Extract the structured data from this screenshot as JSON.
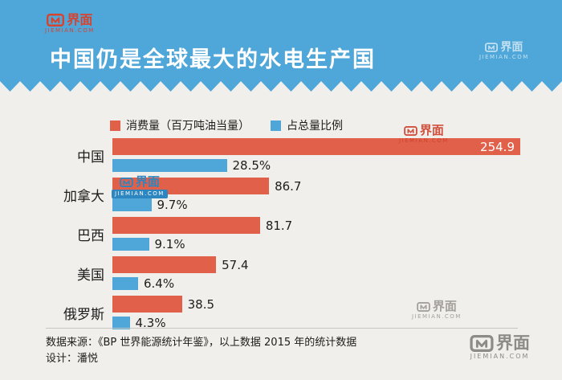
{
  "brand": {
    "name": "界面",
    "domain": "JIEMIAN.COM"
  },
  "header": {
    "title": "中国仍是全球最大的水电生产国"
  },
  "legend": [
    {
      "label": "消费量（百万吨油当量）",
      "color": "#E0604A"
    },
    {
      "label": "占总量比例",
      "color": "#4FA6D8"
    }
  ],
  "chart_data": {
    "type": "bar",
    "orientation": "horizontal",
    "title": "中国仍是全球最大的水电生产国",
    "categories": [
      "中国",
      "加拿大",
      "巴西",
      "美国",
      "俄罗斯"
    ],
    "series": [
      {
        "name": "消费量（百万吨油当量）",
        "color": "#E0604A",
        "values": [
          254.9,
          86.7,
          81.7,
          57.4,
          38.5
        ],
        "labels": [
          "254.9",
          "86.7",
          "81.7",
          "57.4",
          "38.5"
        ]
      },
      {
        "name": "占总量比例",
        "color": "#4FA6D8",
        "values": [
          28.5,
          9.7,
          9.1,
          6.4,
          4.3
        ],
        "labels": [
          "28.5%",
          "9.7%",
          "9.1%",
          "6.4%",
          "4.3%"
        ]
      }
    ],
    "legend_position": "top",
    "grid": false
  },
  "footer": {
    "source": "数据来源：《BP 世界能源统计年鉴》，以上数据 2015 年的统计数据",
    "design": "设计：潘悦"
  },
  "colors": {
    "band_blue": "#4FA6D8",
    "bar_red": "#E0604A",
    "bar_blue": "#4FA6D8",
    "background": "#F1EFEC",
    "text": "#1D1D1B"
  }
}
